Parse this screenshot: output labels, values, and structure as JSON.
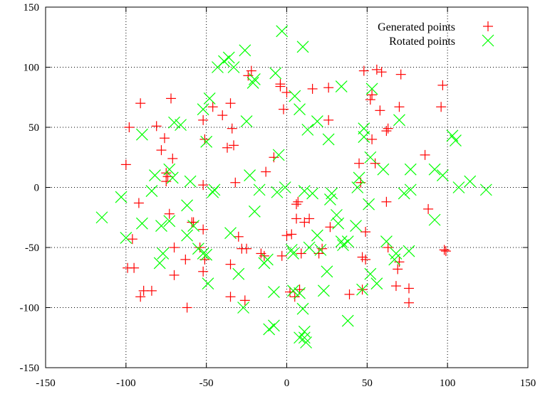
{
  "chart_data": {
    "type": "scatter",
    "xlim": [
      -150,
      150
    ],
    "ylim": [
      -150,
      150
    ],
    "xticks": [
      -150,
      -100,
      -50,
      0,
      50,
      100,
      150
    ],
    "yticks": [
      -150,
      -100,
      -50,
      0,
      50,
      100,
      150
    ],
    "grid": true,
    "legend_position": "top-right",
    "series": [
      {
        "name": "Generated points",
        "color": "#ff0000",
        "marker": "plus",
        "points": [
          [
            -100,
            19
          ],
          [
            -98,
            50
          ],
          [
            -92,
            -13
          ],
          [
            -91,
            70
          ],
          [
            -96,
            -43
          ],
          [
            -99,
            -67
          ],
          [
            -95,
            -67
          ],
          [
            -91,
            -91
          ],
          [
            -89,
            -86
          ],
          [
            -84,
            -86
          ],
          [
            -81,
            51
          ],
          [
            -78,
            31
          ],
          [
            -76,
            41
          ],
          [
            -75,
            5
          ],
          [
            -75,
            12
          ],
          [
            -74,
            9
          ],
          [
            -73,
            -22
          ],
          [
            -72,
            74
          ],
          [
            -71,
            24
          ],
          [
            -70,
            -50
          ],
          [
            -70,
            -73
          ],
          [
            -63,
            -60
          ],
          [
            -62,
            -100
          ],
          [
            -59,
            -29
          ],
          [
            -58,
            -29
          ],
          [
            -54,
            -50
          ],
          [
            -52,
            -35
          ],
          [
            -52,
            -70
          ],
          [
            -51,
            -60
          ],
          [
            -52,
            56
          ],
          [
            -51,
            40
          ],
          [
            -52,
            2
          ],
          [
            -46,
            67
          ],
          [
            -40,
            60
          ],
          [
            -37,
            33
          ],
          [
            -35,
            -64
          ],
          [
            -35,
            -91
          ],
          [
            -35,
            70
          ],
          [
            -34,
            49
          ],
          [
            -33,
            35
          ],
          [
            -32,
            4
          ],
          [
            -30,
            -41
          ],
          [
            -28,
            -51
          ],
          [
            -26,
            -94
          ],
          [
            -25,
            -51
          ],
          [
            -24,
            93
          ],
          [
            -22,
            97
          ],
          [
            -16,
            -55
          ],
          [
            -14,
            -57
          ],
          [
            -13,
            13
          ],
          [
            -8,
            25
          ],
          [
            -4,
            84
          ],
          [
            -4,
            86
          ],
          [
            -3,
            -57
          ],
          [
            -2,
            65
          ],
          [
            0,
            -40
          ],
          [
            0,
            79
          ],
          [
            2,
            -87
          ],
          [
            3,
            -39
          ],
          [
            5,
            -91
          ],
          [
            6,
            -26
          ],
          [
            6,
            -14
          ],
          [
            7,
            -12
          ],
          [
            8,
            -85
          ],
          [
            9,
            -55
          ],
          [
            11,
            -29
          ],
          [
            14,
            -26
          ],
          [
            16,
            82
          ],
          [
            20,
            -55
          ],
          [
            22,
            -51
          ],
          [
            26,
            56
          ],
          [
            26,
            83
          ],
          [
            27,
            -33
          ],
          [
            39,
            -89
          ],
          [
            45,
            20
          ],
          [
            46,
            4
          ],
          [
            47,
            -58
          ],
          [
            47,
            -85
          ],
          [
            48,
            97
          ],
          [
            49,
            -37
          ],
          [
            49,
            -60
          ],
          [
            52,
            73
          ],
          [
            53,
            77
          ],
          [
            53,
            40
          ],
          [
            55,
            20
          ],
          [
            56,
            98
          ],
          [
            58,
            64
          ],
          [
            59,
            96
          ],
          [
            62,
            47
          ],
          [
            63,
            -50
          ],
          [
            62,
            -12
          ],
          [
            63,
            49
          ],
          [
            68,
            -82
          ],
          [
            69,
            -68
          ],
          [
            70,
            67
          ],
          [
            71,
            94
          ],
          [
            70,
            -62
          ],
          [
            76,
            -84
          ],
          [
            76,
            -96
          ],
          [
            86,
            27
          ],
          [
            88,
            -18
          ],
          [
            96,
            67
          ],
          [
            97,
            85
          ],
          [
            98,
            -52
          ],
          [
            99,
            -53
          ]
        ]
      },
      {
        "name": "Rotated points",
        "color": "#00ff00",
        "marker": "cross",
        "points": [
          [
            -115,
            -25
          ],
          [
            -103,
            -8
          ],
          [
            -100,
            -42
          ],
          [
            -90,
            -30
          ],
          [
            -90,
            44
          ],
          [
            -84,
            -3
          ],
          [
            -82,
            10
          ],
          [
            -78,
            -32
          ],
          [
            -79,
            -63
          ],
          [
            -77,
            -55
          ],
          [
            -73,
            -28
          ],
          [
            -73,
            15
          ],
          [
            -71,
            8
          ],
          [
            -70,
            54
          ],
          [
            -66,
            52
          ],
          [
            -62,
            -15
          ],
          [
            -62,
            -40
          ],
          [
            -60,
            5
          ],
          [
            -58,
            -32
          ],
          [
            -55,
            -51
          ],
          [
            -52,
            -55
          ],
          [
            -50,
            -56
          ],
          [
            -49,
            -80
          ],
          [
            -52,
            65
          ],
          [
            -50,
            38
          ],
          [
            -48,
            74
          ],
          [
            -45,
            -2
          ],
          [
            -46,
            -4
          ],
          [
            -43,
            100
          ],
          [
            -39,
            105
          ],
          [
            -36,
            108
          ],
          [
            -33,
            100
          ],
          [
            -35,
            -38
          ],
          [
            -30,
            -72
          ],
          [
            -27,
            -100
          ],
          [
            -26,
            114
          ],
          [
            -25,
            55
          ],
          [
            -23,
            10
          ],
          [
            -20,
            -20
          ],
          [
            -21,
            87
          ],
          [
            -20,
            90
          ],
          [
            -17,
            -2
          ],
          [
            -14,
            -63
          ],
          [
            -12,
            -60
          ],
          [
            -11,
            -118
          ],
          [
            -8,
            -115
          ],
          [
            -8,
            -87
          ],
          [
            -7,
            95
          ],
          [
            -6,
            -4
          ],
          [
            -5,
            27
          ],
          [
            -3,
            130
          ],
          [
            -1,
            0
          ],
          [
            3,
            -52
          ],
          [
            4,
            -55
          ],
          [
            4,
            -86
          ],
          [
            5,
            76
          ],
          [
            8,
            -88
          ],
          [
            8,
            -125
          ],
          [
            8,
            65
          ],
          [
            10,
            -101
          ],
          [
            10,
            117
          ],
          [
            11,
            -125
          ],
          [
            11,
            -3
          ],
          [
            12,
            -129
          ],
          [
            11,
            -120
          ],
          [
            13,
            48
          ],
          [
            14,
            -50
          ],
          [
            16,
            -5
          ],
          [
            19,
            -40
          ],
          [
            19,
            55
          ],
          [
            21,
            -52
          ],
          [
            23,
            -86
          ],
          [
            25,
            -70
          ],
          [
            26,
            40
          ],
          [
            27,
            -10
          ],
          [
            28,
            -5
          ],
          [
            31,
            -23
          ],
          [
            32,
            -30
          ],
          [
            34,
            -45
          ],
          [
            35,
            -48
          ],
          [
            34,
            84
          ],
          [
            38,
            -45
          ],
          [
            38,
            -111
          ],
          [
            43,
            -32
          ],
          [
            44,
            0
          ],
          [
            45,
            8
          ],
          [
            47,
            -85
          ],
          [
            48,
            49
          ],
          [
            48,
            42
          ],
          [
            51,
            -14
          ],
          [
            52,
            -72
          ],
          [
            52,
            25
          ],
          [
            53,
            82
          ],
          [
            56,
            -80
          ],
          [
            60,
            15
          ],
          [
            62,
            -45
          ],
          [
            67,
            -60
          ],
          [
            68,
            -55
          ],
          [
            70,
            56
          ],
          [
            73,
            -5
          ],
          [
            76,
            -53
          ],
          [
            77,
            -2
          ],
          [
            77,
            15
          ],
          [
            92,
            15
          ],
          [
            92,
            -27
          ],
          [
            97,
            10
          ],
          [
            103,
            43
          ],
          [
            105,
            39
          ],
          [
            107,
            0
          ],
          [
            114,
            5
          ],
          [
            124,
            -2
          ]
        ]
      }
    ]
  }
}
